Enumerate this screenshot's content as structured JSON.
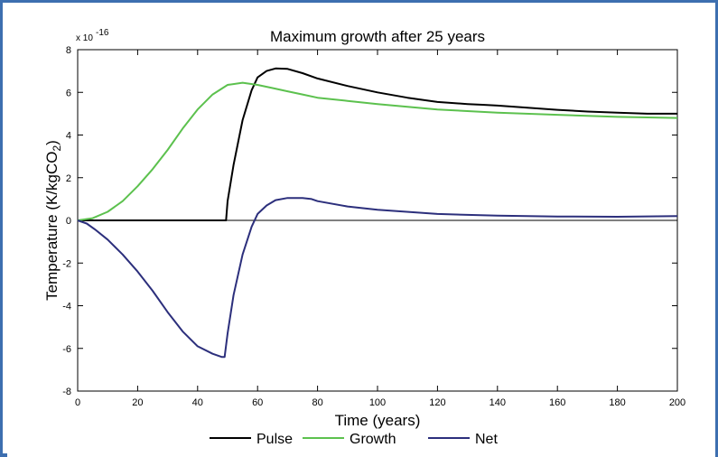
{
  "chart_data": {
    "type": "line",
    "title": "Maximum growth after 25 years",
    "xlabel": "Time (years)",
    "ylabel_main": "Temperature (K/kgCO",
    "ylabel_sub": "2",
    "ylabel_end": ")",
    "y_exponent_base": "x 10",
    "y_exponent_power": "-16",
    "xlim": [
      0,
      200
    ],
    "ylim": [
      -8,
      8
    ],
    "x_ticks": [
      0,
      20,
      40,
      60,
      80,
      100,
      120,
      140,
      160,
      180,
      200
    ],
    "y_ticks": [
      -8,
      -6,
      -4,
      -2,
      0,
      2,
      4,
      6,
      8
    ],
    "x_tick_labels": [
      "0",
      "20",
      "40",
      "60",
      "80",
      "100",
      "120",
      "140",
      "160",
      "180",
      "200"
    ],
    "y_tick_labels": [
      "-8",
      "-6",
      "-4",
      "-2",
      "0",
      "2",
      "4",
      "6",
      "8"
    ],
    "zero_line": true,
    "grid": false,
    "legend_position": "bottom-center",
    "series": [
      {
        "name": "Pulse",
        "color": "#000000",
        "x": [
          0,
          49,
          49.5,
          50,
          52,
          55,
          58,
          60,
          63,
          66,
          70,
          75,
          80,
          90,
          100,
          110,
          120,
          130,
          135,
          140,
          150,
          160,
          170,
          180,
          190,
          200
        ],
        "y": [
          0,
          0,
          0,
          0.9,
          2.6,
          4.7,
          6.1,
          6.7,
          7.0,
          7.12,
          7.1,
          6.9,
          6.65,
          6.3,
          6.0,
          5.75,
          5.55,
          5.45,
          5.42,
          5.38,
          5.28,
          5.18,
          5.1,
          5.05,
          5.0,
          5.0
        ]
      },
      {
        "name": "Growth",
        "color": "#5cc14e",
        "x": [
          0,
          5,
          10,
          15,
          20,
          25,
          30,
          35,
          40,
          45,
          50,
          55,
          60,
          65,
          70,
          75,
          80,
          90,
          100,
          120,
          140,
          160,
          180,
          200
        ],
        "y": [
          0,
          0.1,
          0.4,
          0.9,
          1.6,
          2.4,
          3.3,
          4.3,
          5.2,
          5.9,
          6.35,
          6.45,
          6.35,
          6.2,
          6.05,
          5.9,
          5.75,
          5.6,
          5.45,
          5.2,
          5.05,
          4.95,
          4.85,
          4.8
        ]
      },
      {
        "name": "Net",
        "color": "#2c2f7c",
        "x": [
          0,
          3,
          6,
          10,
          15,
          20,
          25,
          30,
          35,
          40,
          45,
          48,
          49,
          50,
          52,
          55,
          58,
          60,
          63,
          66,
          70,
          75,
          78,
          80,
          90,
          100,
          120,
          140,
          160,
          180,
          200
        ],
        "y": [
          0,
          -0.15,
          -0.45,
          -0.9,
          -1.6,
          -2.4,
          -3.3,
          -4.3,
          -5.2,
          -5.9,
          -6.25,
          -6.4,
          -6.4,
          -5.3,
          -3.5,
          -1.6,
          -0.3,
          0.3,
          0.7,
          0.95,
          1.05,
          1.05,
          1.0,
          0.9,
          0.65,
          0.5,
          0.3,
          0.22,
          0.18,
          0.17,
          0.2
        ]
      }
    ]
  }
}
